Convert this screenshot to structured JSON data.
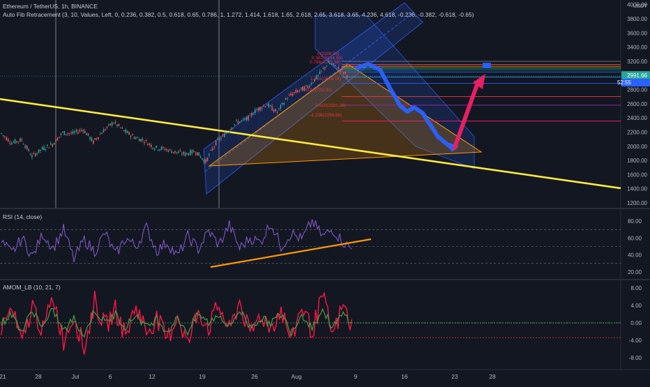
{
  "header": {
    "symbol_line": "Ethereum / TetherUS, 1h, BINANCE",
    "fib_line": "Auto Fib Retracement (3, 10, Values, Left, 0, 0.236, 0.382, 0.5, 0.618, 0.65, 0.786, 1, 1.272, 1.414, 1.618, 1.65, 2.618, 2.65, 3.618, 3.65, 4.236, 4.618, -0.236, -0.382, -0.618, -0.65)"
  },
  "price_pane": {
    "currency": "USDT",
    "axis_ticks": [
      "1200.00",
      "1400.00",
      "1600.00",
      "1800.00",
      "2000.00",
      "2200.00",
      "2400.00",
      "2600.00",
      "2800.00",
      "3000.00",
      "3200.00",
      "3400.00",
      "3600.00",
      "3800.00",
      "4000.00"
    ],
    "last_price": "2991.66",
    "countdown": "52:55",
    "last_price_color": "#26a69a",
    "countdown_color": "#2962ff"
  },
  "rsi_pane": {
    "title": "RSI (14, close)",
    "axis_ticks": [
      "20.00",
      "40.00",
      "60.00",
      "80.00"
    ],
    "color": "#7e57c2"
  },
  "amom_pane": {
    "title": "AMOM_LB (10, 21, 7)",
    "axis_ticks": [
      "-8.00",
      "-4.00",
      "0.00",
      "4.00",
      "8.00"
    ]
  },
  "time_axis": [
    "21",
    "28",
    "Jul",
    "6",
    "12",
    "19",
    "26",
    "Aug",
    "9",
    "16",
    "23",
    "28"
  ],
  "fib_labels": [
    "0(3199.99)",
    "0.382(3154.58)",
    "0.786(3105.38)",
    "1.618(2976.74)",
    "2.618(2702.32)",
    "3.618(2581.26)",
    "-4.236(2356.66)"
  ],
  "colors": {
    "background": "#131722",
    "up": "#26a69a",
    "down": "#ef5350",
    "trendline": "#ffeb3b",
    "channel": "#2962ff",
    "triangle": "#ff9800",
    "forecast_down": "#2962ff",
    "forecast_up": "#e91e63"
  },
  "chart_data": [
    {
      "type": "candlestick",
      "series": [
        {
          "name": "Ethereum / TetherUS, 1h, BINANCE"
        }
      ],
      "ylim": [
        1200,
        4000
      ],
      "x": [
        "21",
        "28",
        "Jul",
        "6",
        "12",
        "19",
        "26",
        "Aug",
        "9",
        "16",
        "23",
        "28"
      ],
      "closes": [
        2180,
        2050,
        2090,
        1860,
        1960,
        2030,
        2190,
        2180,
        2240,
        2060,
        2220,
        2340,
        2220,
        2130,
        2080,
        1980,
        1960,
        1920,
        1890,
        1930,
        1780,
        2050,
        2180,
        2340,
        2380,
        2520,
        2590,
        2480,
        2690,
        2780,
        2840,
        2990,
        3180,
        3100,
        2991.66
      ],
      "last": 2991.66,
      "annotations": [
        "ascending channel",
        "descending channel",
        "triangle",
        "long downtrend line",
        "blue projected path down to ~1900",
        "red projected arrow up to ~3150"
      ]
    },
    {
      "type": "line",
      "series": [
        {
          "name": "RSI (14, close)",
          "values": [
            55,
            42,
            60,
            38,
            65,
            48,
            70,
            35,
            58,
            44,
            66,
            40,
            60,
            50,
            72,
            45,
            55,
            38,
            62,
            47,
            68,
            52,
            75,
            48,
            60,
            55,
            78,
            50,
            66,
            58,
            80,
            62,
            70,
            55,
            45
          ]
        }
      ],
      "ylim": [
        15,
        88
      ]
    },
    {
      "type": "line",
      "series": [
        {
          "name": "red",
          "values": [
            -1,
            3,
            -5,
            4,
            -2,
            6,
            -4,
            2,
            -6,
            5,
            -1,
            3,
            -3,
            4,
            -2,
            1,
            -4,
            2,
            -5,
            3,
            -1,
            4,
            -2,
            5,
            -3,
            2,
            -1,
            3,
            -4,
            4,
            -2,
            6,
            -3,
            4,
            -2
          ]
        },
        {
          "name": "green",
          "values": [
            0,
            2,
            -2,
            3,
            -1,
            3,
            -2,
            1,
            -3,
            3,
            0,
            2,
            -1,
            2,
            -1,
            1,
            -2,
            1,
            -2,
            2,
            0,
            2,
            -1,
            3,
            -1,
            1,
            0,
            2,
            -2,
            2,
            -1,
            3,
            -1,
            2,
            0
          ]
        }
      ],
      "ylim": [
        -10,
        9
      ]
    }
  ]
}
